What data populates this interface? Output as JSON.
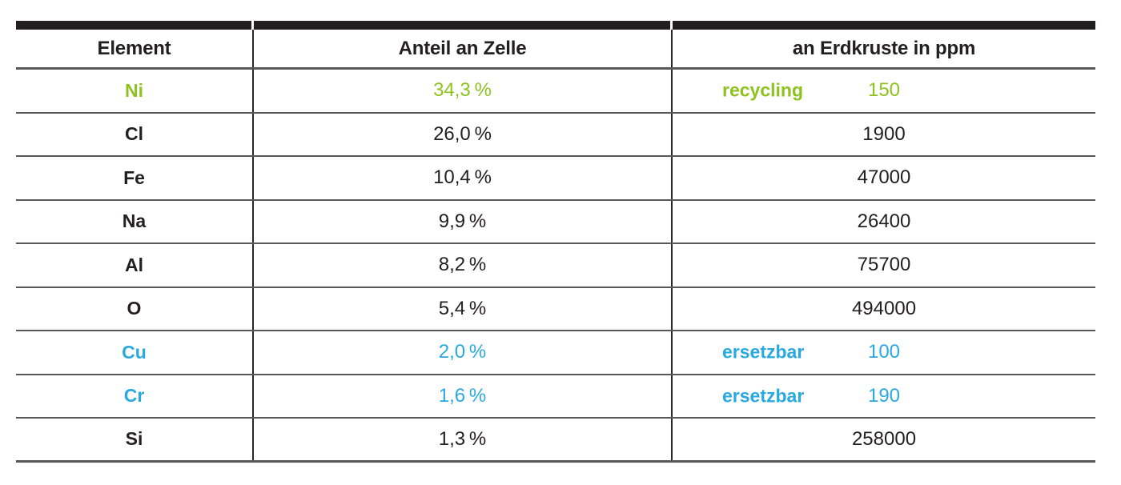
{
  "chart_data": {
    "type": "table",
    "columns": [
      "Element",
      "Anteil an Zelle",
      "an Erdkruste in ppm"
    ],
    "rows": [
      {
        "element": "Ni",
        "share": "34,3 %",
        "label": "recycling",
        "ppm": "150",
        "color": "green"
      },
      {
        "element": "Cl",
        "share": "26,0 %",
        "label": "",
        "ppm": "1900",
        "color": "default"
      },
      {
        "element": "Fe",
        "share": "10,4 %",
        "label": "",
        "ppm": "47000",
        "color": "default"
      },
      {
        "element": "Na",
        "share": "9,9 %",
        "label": "",
        "ppm": "26400",
        "color": "default"
      },
      {
        "element": "Al",
        "share": "8,2 %",
        "label": "",
        "ppm": "75700",
        "color": "default"
      },
      {
        "element": "O",
        "share": "5,4 %",
        "label": "",
        "ppm": "494000",
        "color": "default"
      },
      {
        "element": "Cu",
        "share": "2,0 %",
        "label": "ersetzbar",
        "ppm": "100",
        "color": "blue"
      },
      {
        "element": "Cr",
        "share": "1,6 %",
        "label": "ersetzbar",
        "ppm": "190",
        "color": "blue"
      },
      {
        "element": "Si",
        "share": "1,3 %",
        "label": "",
        "ppm": "258000",
        "color": "default"
      }
    ]
  },
  "colors": {
    "green": "#8dc21f",
    "blue": "#29a9e0",
    "header_bar": "#231f20",
    "grid_line": "#58585a",
    "text": "#231f20"
  }
}
